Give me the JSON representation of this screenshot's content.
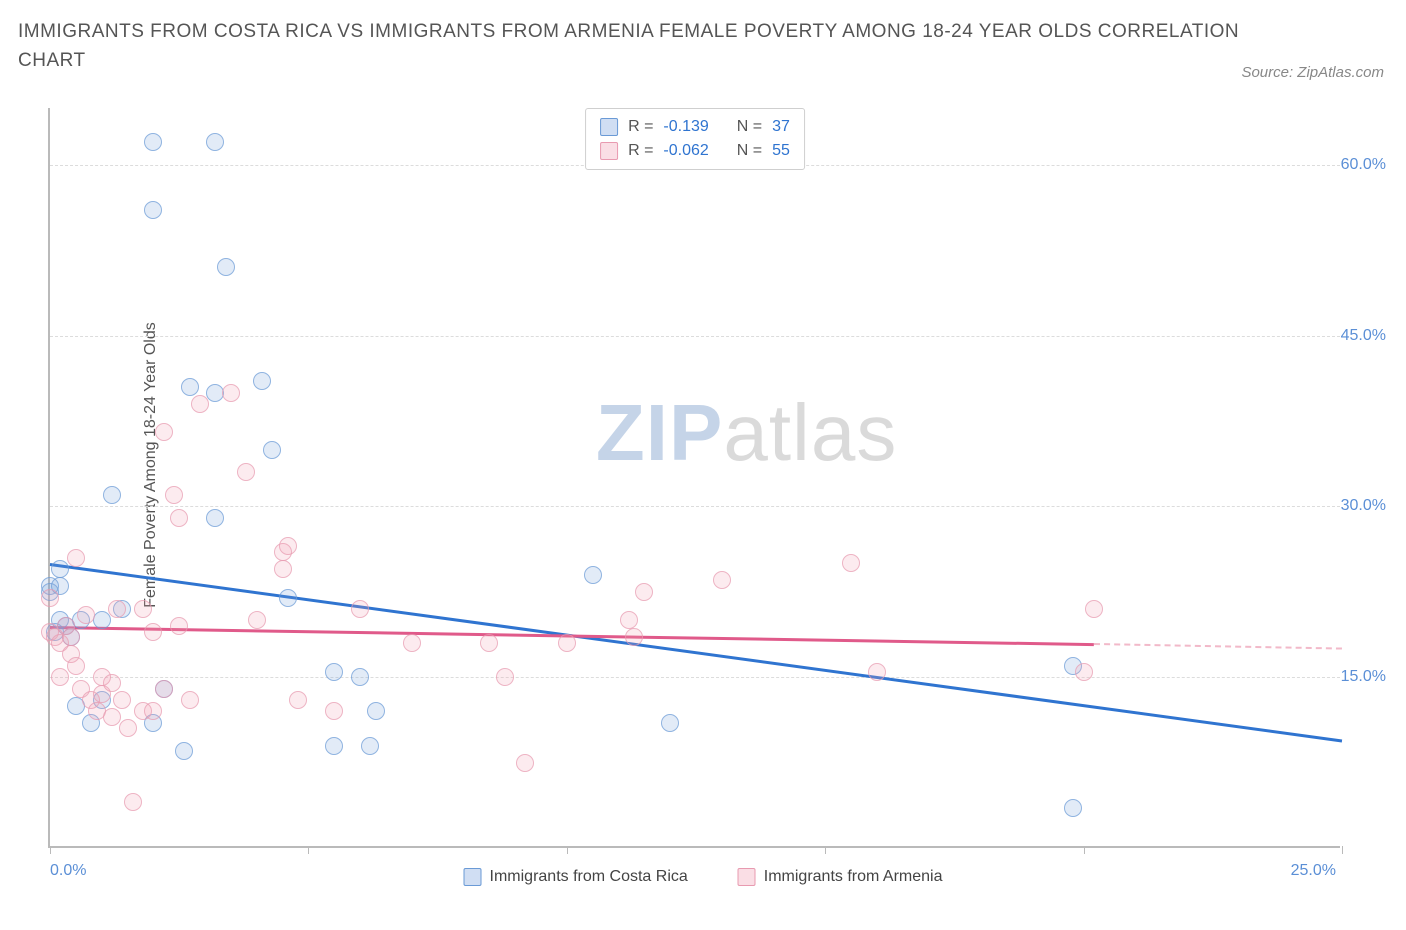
{
  "title": "IMMIGRANTS FROM COSTA RICA VS IMMIGRANTS FROM ARMENIA FEMALE POVERTY AMONG 18-24 YEAR OLDS CORRELATION CHART",
  "source": "Source: ZipAtlas.com",
  "y_axis_label": "Female Poverty Among 18-24 Year Olds",
  "watermark_a": "ZIP",
  "watermark_b": "atlas",
  "chart": {
    "type": "scatter",
    "background_color": "#ffffff",
    "grid_color": "#dcdcdc",
    "axis_color": "#bababa",
    "xlim": [
      0,
      25
    ],
    "ylim": [
      0,
      65
    ],
    "x_ticks": [
      0,
      5,
      10,
      15,
      20,
      25
    ],
    "y_gridlines": [
      15,
      30,
      45,
      60
    ],
    "x_tick_labels": {
      "min": "0.0%",
      "max": "25.0%"
    },
    "y_tick_labels": [
      {
        "val": 15,
        "label": "15.0%"
      },
      {
        "val": 30,
        "label": "30.0%"
      },
      {
        "val": 45,
        "label": "45.0%"
      },
      {
        "val": 60,
        "label": "60.0%"
      }
    ],
    "marker_radius": 9,
    "series": [
      {
        "key": "a",
        "name": "Immigrants from Costa Rica",
        "color_fill": "rgba(120,160,220,0.28)",
        "color_border": "#6a9ad6",
        "trend_color": "#2f74d0",
        "R": "-0.139",
        "N": "37",
        "trend": {
          "x1": 0,
          "y1": 25.0,
          "x2": 25,
          "y2": 9.5
        },
        "points": [
          [
            0.0,
            22.5
          ],
          [
            0.0,
            23.0
          ],
          [
            0.1,
            19.0
          ],
          [
            0.2,
            23.0
          ],
          [
            0.2,
            24.5
          ],
          [
            0.2,
            20.0
          ],
          [
            0.3,
            19.5
          ],
          [
            0.4,
            18.5
          ],
          [
            0.5,
            12.5
          ],
          [
            0.6,
            20.0
          ],
          [
            0.8,
            11.0
          ],
          [
            1.0,
            20.0
          ],
          [
            1.0,
            13.0
          ],
          [
            1.2,
            31.0
          ],
          [
            1.4,
            21.0
          ],
          [
            2.0,
            62.0
          ],
          [
            2.0,
            56.0
          ],
          [
            2.0,
            11.0
          ],
          [
            2.2,
            14.0
          ],
          [
            2.6,
            8.5
          ],
          [
            2.7,
            40.5
          ],
          [
            3.2,
            62.0
          ],
          [
            3.2,
            40.0
          ],
          [
            3.2,
            29.0
          ],
          [
            3.4,
            51.0
          ],
          [
            4.1,
            41.0
          ],
          [
            4.3,
            35.0
          ],
          [
            4.6,
            22.0
          ],
          [
            5.5,
            15.5
          ],
          [
            5.5,
            9.0
          ],
          [
            6.0,
            15.0
          ],
          [
            6.2,
            9.0
          ],
          [
            6.3,
            12.0
          ],
          [
            10.5,
            24.0
          ],
          [
            12.0,
            11.0
          ],
          [
            19.8,
            3.5
          ],
          [
            19.8,
            16.0
          ]
        ]
      },
      {
        "key": "b",
        "name": "Immigrants from Armenia",
        "color_fill": "rgba(240,160,180,0.28)",
        "color_border": "#e89ab0",
        "trend_color": "#e05a8a",
        "R": "-0.062",
        "N": "55",
        "trend": {
          "x1": 0,
          "y1": 19.5,
          "x2": 20.2,
          "y2": 18.0
        },
        "trend_dash": {
          "x1": 20.2,
          "y1": 18.0,
          "x2": 25,
          "y2": 17.6
        },
        "points": [
          [
            0.0,
            22.0
          ],
          [
            0.0,
            19.0
          ],
          [
            0.1,
            18.5
          ],
          [
            0.2,
            18.0
          ],
          [
            0.2,
            15.0
          ],
          [
            0.3,
            19.5
          ],
          [
            0.4,
            18.5
          ],
          [
            0.4,
            17.0
          ],
          [
            0.5,
            16.0
          ],
          [
            0.5,
            25.5
          ],
          [
            0.6,
            14.0
          ],
          [
            0.7,
            20.5
          ],
          [
            0.8,
            13.0
          ],
          [
            0.9,
            12.0
          ],
          [
            1.0,
            15.0
          ],
          [
            1.0,
            13.5
          ],
          [
            1.2,
            14.5
          ],
          [
            1.2,
            11.5
          ],
          [
            1.3,
            21.0
          ],
          [
            1.4,
            13.0
          ],
          [
            1.5,
            10.5
          ],
          [
            1.6,
            4.0
          ],
          [
            1.8,
            12.0
          ],
          [
            1.8,
            21.0
          ],
          [
            2.0,
            19.0
          ],
          [
            2.0,
            12.0
          ],
          [
            2.2,
            36.5
          ],
          [
            2.2,
            14.0
          ],
          [
            2.4,
            31.0
          ],
          [
            2.5,
            29.0
          ],
          [
            2.5,
            19.5
          ],
          [
            2.7,
            13.0
          ],
          [
            2.9,
            39.0
          ],
          [
            3.5,
            40.0
          ],
          [
            3.8,
            33.0
          ],
          [
            4.0,
            20.0
          ],
          [
            4.5,
            26.0
          ],
          [
            4.5,
            24.5
          ],
          [
            4.6,
            26.5
          ],
          [
            4.8,
            13.0
          ],
          [
            5.5,
            12.0
          ],
          [
            6.0,
            21.0
          ],
          [
            7.0,
            18.0
          ],
          [
            8.5,
            18.0
          ],
          [
            8.8,
            15.0
          ],
          [
            9.2,
            7.5
          ],
          [
            10.0,
            18.0
          ],
          [
            11.2,
            20.0
          ],
          [
            11.3,
            18.5
          ],
          [
            11.5,
            22.5
          ],
          [
            13.0,
            23.5
          ],
          [
            15.5,
            25.0
          ],
          [
            16.0,
            15.5
          ],
          [
            20.0,
            15.5
          ],
          [
            20.2,
            21.0
          ]
        ]
      }
    ]
  },
  "legend_stats": {
    "rows": [
      {
        "swatch": "a",
        "r_label": "R =",
        "r_val": "-0.139",
        "n_label": "N =",
        "n_val": "37"
      },
      {
        "swatch": "b",
        "r_label": "R =",
        "r_val": "-0.062",
        "n_label": "N =",
        "n_val": "55"
      }
    ]
  }
}
